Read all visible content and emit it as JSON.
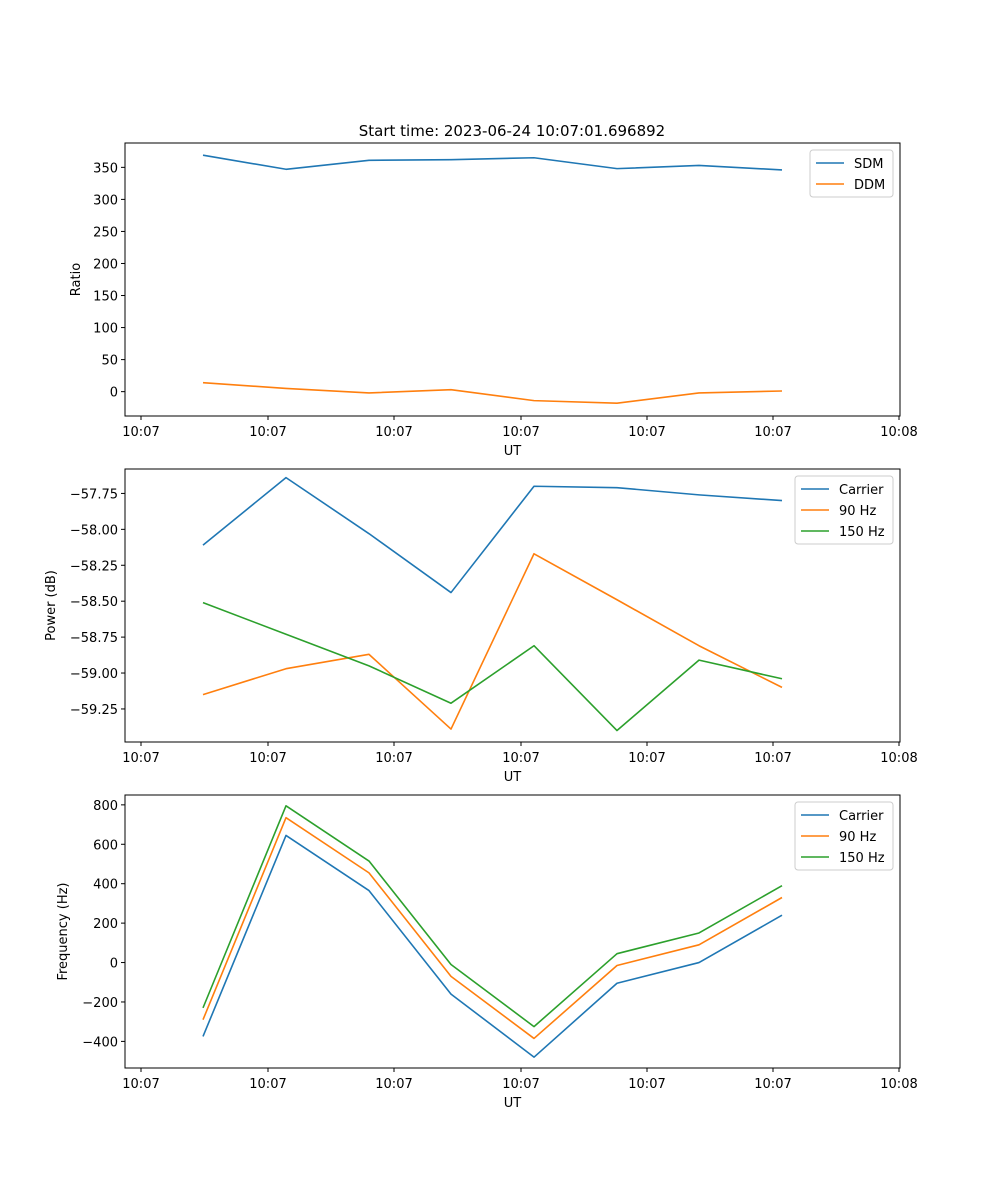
{
  "figure": {
    "title": "Start time: 2023-06-24 10:07:01.696892"
  },
  "chart_data": [
    {
      "type": "line",
      "xlabel": "UT",
      "ylabel": "Ratio",
      "xticks": [
        "10:07",
        "10:07",
        "10:07",
        "10:07",
        "10:07",
        "10:07",
        "10:08"
      ],
      "yticks": [
        "0",
        "50",
        "100",
        "150",
        "200",
        "250",
        "300",
        "350"
      ],
      "ylim": [
        -38,
        388
      ],
      "legend_position": "top-right",
      "series": [
        {
          "name": "SDM",
          "color": "#1f77b4",
          "values": [
            369,
            347,
            361,
            362,
            365,
            348,
            353,
            346
          ]
        },
        {
          "name": "DDM",
          "color": "#ff7f0e",
          "values": [
            14,
            5,
            -2,
            3,
            -14,
            -18,
            -2,
            1
          ]
        }
      ]
    },
    {
      "type": "line",
      "xlabel": "UT",
      "ylabel": "Power (dB)",
      "xticks": [
        "10:07",
        "10:07",
        "10:07",
        "10:07",
        "10:07",
        "10:07",
        "10:08"
      ],
      "yticks": [
        "−57.75",
        "−58.00",
        "−58.25",
        "−58.50",
        "−58.75",
        "−59.00",
        "−59.25"
      ],
      "ylim": [
        -59.48,
        -57.58
      ],
      "legend_position": "top-right",
      "series": [
        {
          "name": "Carrier",
          "color": "#1f77b4",
          "values": [
            -58.11,
            -57.64,
            -58.03,
            -58.44,
            -57.7,
            -57.71,
            -57.76,
            -57.8
          ]
        },
        {
          "name": "90 Hz",
          "color": "#ff7f0e",
          "values": [
            -59.15,
            -58.97,
            -58.87,
            -59.39,
            -58.17,
            -58.49,
            -58.81,
            -59.1
          ]
        },
        {
          "name": "150 Hz",
          "color": "#2ca02c",
          "values": [
            -58.51,
            -58.73,
            -58.95,
            -59.21,
            -58.81,
            -59.4,
            -58.91,
            -59.04
          ]
        }
      ]
    },
    {
      "type": "line",
      "xlabel": "UT",
      "ylabel": "Frequency (Hz)",
      "xticks": [
        "10:07",
        "10:07",
        "10:07",
        "10:07",
        "10:07",
        "10:07",
        "10:08"
      ],
      "yticks": [
        "−400",
        "−200",
        "0",
        "200",
        "400",
        "600",
        "800"
      ],
      "ylim": [
        -535,
        850
      ],
      "legend_position": "top-right",
      "series": [
        {
          "name": "Carrier",
          "color": "#1f77b4",
          "values": [
            -375,
            645,
            365,
            -160,
            -480,
            -105,
            0,
            240
          ]
        },
        {
          "name": "90 Hz",
          "color": "#ff7f0e",
          "values": [
            -290,
            735,
            455,
            -70,
            -385,
            -15,
            90,
            330
          ]
        },
        {
          "name": "150 Hz",
          "color": "#2ca02c",
          "values": [
            -230,
            795,
            515,
            -10,
            -325,
            45,
            150,
            390
          ]
        }
      ]
    }
  ]
}
